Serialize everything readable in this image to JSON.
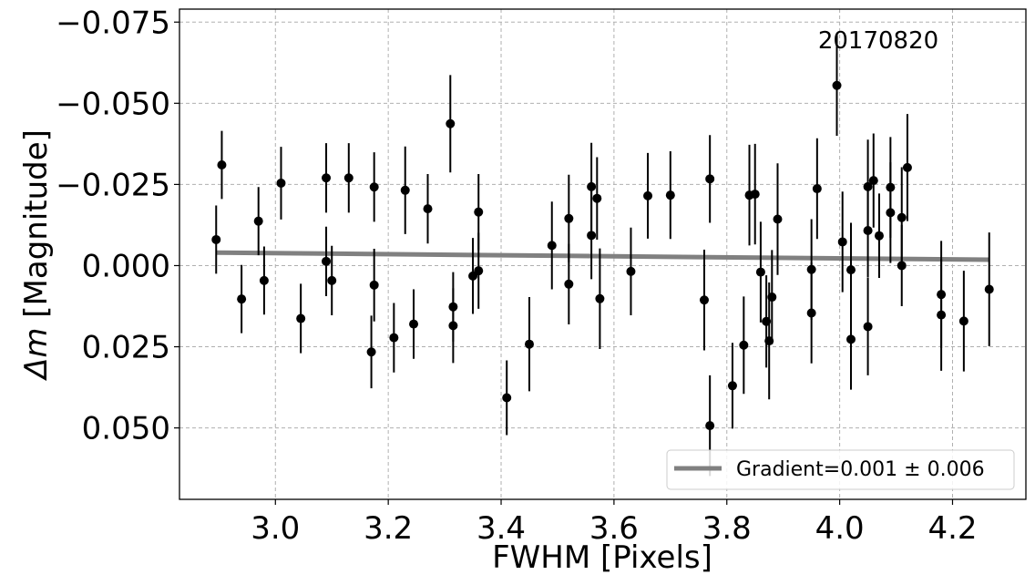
{
  "chart_data": {
    "type": "scatter",
    "title": "",
    "annotation": "20170820",
    "xlabel": "FWHM [Pixels]",
    "ylabel_symbol": "Δm",
    "ylabel_text": " [Magnitude]",
    "xlim": [
      2.83,
      4.33
    ],
    "ylim": [
      0.072,
      -0.079
    ],
    "y_inverted": true,
    "grid": true,
    "legend_position": "lower-right",
    "x_ticks": [
      {
        "value": 3.0,
        "label": "3.0"
      },
      {
        "value": 3.2,
        "label": "3.2"
      },
      {
        "value": 3.4,
        "label": "3.4"
      },
      {
        "value": 3.6,
        "label": "3.6"
      },
      {
        "value": 3.8,
        "label": "3.8"
      },
      {
        "value": 4.0,
        "label": "4.0"
      },
      {
        "value": 4.2,
        "label": "4.2"
      }
    ],
    "y_ticks": [
      {
        "value": -0.075,
        "label": "−0.075"
      },
      {
        "value": -0.05,
        "label": "−0.050"
      },
      {
        "value": -0.025,
        "label": "−0.025"
      },
      {
        "value": 0.0,
        "label": "0.000"
      },
      {
        "value": 0.025,
        "label": "0.025"
      },
      {
        "value": 0.05,
        "label": "0.050"
      }
    ],
    "fit": {
      "name": "Gradient=0.001 ± 0.006",
      "x": [
        2.895,
        4.265
      ],
      "y": [
        -0.004,
        -0.0018
      ],
      "color": "#808080"
    },
    "series": [
      {
        "marker_color": "#000000",
        "points": [
          {
            "x": 2.895,
            "y": -0.008,
            "err": 0.0105
          },
          {
            "x": 2.905,
            "y": -0.031,
            "err": 0.0105
          },
          {
            "x": 2.94,
            "y": 0.0103,
            "err": 0.0105
          },
          {
            "x": 2.97,
            "y": -0.0137,
            "err": 0.0105
          },
          {
            "x": 2.98,
            "y": 0.0046,
            "err": 0.0105
          },
          {
            "x": 3.01,
            "y": -0.0254,
            "err": 0.0112
          },
          {
            "x": 3.045,
            "y": 0.0163,
            "err": 0.0107
          },
          {
            "x": 3.09,
            "y": -0.027,
            "err": 0.0107
          },
          {
            "x": 3.09,
            "y": -0.0013,
            "err": 0.0107
          },
          {
            "x": 3.1,
            "y": 0.0046,
            "err": 0.0107
          },
          {
            "x": 3.13,
            "y": -0.027,
            "err": 0.0107
          },
          {
            "x": 3.17,
            "y": 0.0266,
            "err": 0.0112
          },
          {
            "x": 3.175,
            "y": -0.0242,
            "err": 0.0107
          },
          {
            "x": 3.175,
            "y": 0.006,
            "err": 0.0112
          },
          {
            "x": 3.21,
            "y": 0.0222,
            "err": 0.0107
          },
          {
            "x": 3.23,
            "y": -0.0232,
            "err": 0.0135
          },
          {
            "x": 3.245,
            "y": 0.018,
            "err": 0.0107
          },
          {
            "x": 3.27,
            "y": -0.0175,
            "err": 0.0107
          },
          {
            "x": 3.31,
            "y": -0.0437,
            "err": 0.015
          },
          {
            "x": 3.315,
            "y": 0.0127,
            "err": 0.0107
          },
          {
            "x": 3.315,
            "y": 0.0185,
            "err": 0.0115
          },
          {
            "x": 3.35,
            "y": 0.0032,
            "err": 0.0117
          },
          {
            "x": 3.36,
            "y": -0.0165,
            "err": 0.0117
          },
          {
            "x": 3.36,
            "y": 0.0016,
            "err": 0.0117
          },
          {
            "x": 3.41,
            "y": 0.0407,
            "err": 0.0115
          },
          {
            "x": 3.45,
            "y": 0.0242,
            "err": 0.0145
          },
          {
            "x": 3.49,
            "y": -0.0062,
            "err": 0.0135
          },
          {
            "x": 3.52,
            "y": -0.0145,
            "err": 0.0135
          },
          {
            "x": 3.52,
            "y": 0.0057,
            "err": 0.0124
          },
          {
            "x": 3.56,
            "y": -0.0243,
            "err": 0.0135
          },
          {
            "x": 3.56,
            "y": -0.0093,
            "err": 0.0135
          },
          {
            "x": 3.57,
            "y": -0.0207,
            "err": 0.0127
          },
          {
            "x": 3.575,
            "y": 0.0102,
            "err": 0.0155
          },
          {
            "x": 3.63,
            "y": 0.0018,
            "err": 0.0135
          },
          {
            "x": 3.66,
            "y": -0.0215,
            "err": 0.0132
          },
          {
            "x": 3.7,
            "y": -0.0217,
            "err": 0.0135
          },
          {
            "x": 3.76,
            "y": 0.0106,
            "err": 0.0155
          },
          {
            "x": 3.77,
            "y": -0.0267,
            "err": 0.0135
          },
          {
            "x": 3.77,
            "y": 0.0493,
            "err": 0.0155
          },
          {
            "x": 3.81,
            "y": 0.037,
            "err": 0.0132
          },
          {
            "x": 3.83,
            "y": 0.0245,
            "err": 0.015
          },
          {
            "x": 3.84,
            "y": -0.0217,
            "err": 0.0155
          },
          {
            "x": 3.85,
            "y": -0.022,
            "err": 0.0155
          },
          {
            "x": 3.86,
            "y": 0.002,
            "err": 0.0155
          },
          {
            "x": 3.87,
            "y": 0.0172,
            "err": 0.0142
          },
          {
            "x": 3.875,
            "y": 0.0232,
            "err": 0.018
          },
          {
            "x": 3.88,
            "y": 0.0097,
            "err": 0.0145
          },
          {
            "x": 3.89,
            "y": -0.0143,
            "err": 0.0172
          },
          {
            "x": 3.95,
            "y": 0.0012,
            "err": 0.0155
          },
          {
            "x": 3.95,
            "y": 0.0146,
            "err": 0.0155
          },
          {
            "x": 3.96,
            "y": -0.0237,
            "err": 0.0155
          },
          {
            "x": 3.995,
            "y": -0.0555,
            "err": 0.0155
          },
          {
            "x": 4.005,
            "y": -0.0073,
            "err": 0.0155
          },
          {
            "x": 4.02,
            "y": 0.0013,
            "err": 0.0145
          },
          {
            "x": 4.02,
            "y": 0.0227,
            "err": 0.0155
          },
          {
            "x": 4.05,
            "y": -0.0243,
            "err": 0.0145
          },
          {
            "x": 4.05,
            "y": -0.0108,
            "err": 0.0145
          },
          {
            "x": 4.05,
            "y": 0.0188,
            "err": 0.015
          },
          {
            "x": 4.06,
            "y": -0.0262,
            "err": 0.0145
          },
          {
            "x": 4.07,
            "y": -0.0092,
            "err": 0.013
          },
          {
            "x": 4.09,
            "y": -0.0241,
            "err": 0.0155
          },
          {
            "x": 4.09,
            "y": -0.0163,
            "err": 0.0155
          },
          {
            "x": 4.11,
            "y": -0.0148,
            "err": 0.0155
          },
          {
            "x": 4.11,
            "y": 0.0,
            "err": 0.0125
          },
          {
            "x": 4.12,
            "y": -0.0302,
            "err": 0.0165
          },
          {
            "x": 4.18,
            "y": 0.0089,
            "err": 0.0165
          },
          {
            "x": 4.18,
            "y": 0.0152,
            "err": 0.0172
          },
          {
            "x": 4.22,
            "y": 0.0171,
            "err": 0.0155
          },
          {
            "x": 4.265,
            "y": 0.0073,
            "err": 0.0175
          }
        ]
      }
    ]
  }
}
